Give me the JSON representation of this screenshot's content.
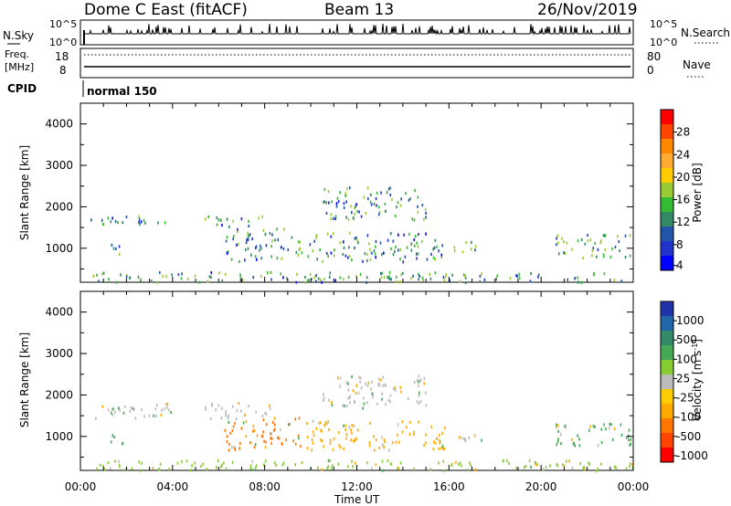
{
  "header": {
    "station": "Dome C East (fitACF)",
    "beam": "Beam 13",
    "date": "26/Nov/2019"
  },
  "colors": {
    "sky_line": "#000000",
    "search_dots": "#000000"
  },
  "chart_data": [
    {
      "type": "line",
      "name": "top-panel",
      "ylabel_left": "N.Sky",
      "ylabel_right": "N.Search",
      "left_ticks": [
        "10^5",
        "10^0"
      ],
      "right_ticks": [
        "10^5",
        "10^0"
      ]
    },
    {
      "type": "line",
      "name": "freq-nave-panel",
      "ylabel_left_lines": [
        "Freq.",
        "[MHz]"
      ],
      "ylabel_right": "Nave",
      "left_ticks": [
        "18",
        "8"
      ],
      "right_ticks": [
        "80",
        "0"
      ]
    },
    {
      "type": "table",
      "name": "cpid-panel",
      "label": "CPID",
      "mode": "normal 150"
    },
    {
      "type": "heatmap",
      "name": "power",
      "ylabel": "Slant Range [km]",
      "yticks": [
        "4000",
        "3000",
        "2000",
        "1000"
      ],
      "ylim": [
        180,
        4500
      ],
      "xlim": [
        0,
        24
      ],
      "xticks": [
        "00:00",
        "04:00",
        "08:00",
        "12:00",
        "16:00",
        "20:00",
        "00:00"
      ],
      "colorbar": {
        "label": "Power [dB]",
        "ticks": [
          "28",
          "24",
          "20",
          "16",
          "12",
          "8",
          "4"
        ],
        "colors": [
          "#ff0000",
          "#ff4400",
          "#ff8800",
          "#ffaa33",
          "#ffcc00",
          "#99cc33",
          "#33bb33",
          "#338866",
          "#2255aa",
          "#2233cc",
          "#0000ff"
        ]
      }
    },
    {
      "type": "heatmap",
      "name": "velocity",
      "ylabel": "Slant Range [km]",
      "yticks": [
        "4000",
        "3000",
        "2000",
        "1000"
      ],
      "ylim": [
        180,
        4500
      ],
      "xlim": [
        0,
        24
      ],
      "xticks": [
        "00:00",
        "04:00",
        "08:00",
        "12:00",
        "16:00",
        "20:00",
        "00:00"
      ],
      "xlabel": "Time UT",
      "colorbar": {
        "label": "Velocity [m s",
        "label_sup": "-1",
        "label_end": "]",
        "ticks": [
          "1000",
          "500",
          "100",
          "25",
          "-25",
          "-100",
          "-500",
          "-1000"
        ],
        "colors": [
          "#2233aa",
          "#2266aa",
          "#338866",
          "#44aa55",
          "#88cc33",
          "#bbbbbb",
          "#ffcc00",
          "#ffaa00",
          "#ff7700",
          "#ff4400",
          "#ff0000"
        ]
      },
      "bands": [
        {
          "t0": 0.1,
          "t1": 24,
          "r0": 200,
          "r1": 450,
          "color": "#88cc33"
        },
        {
          "t0": 0.4,
          "t1": 4.0,
          "r0": 1450,
          "r1": 1850,
          "color": "#bbbbbb"
        },
        {
          "t0": 5.3,
          "t1": 8.4,
          "r0": 1450,
          "r1": 1850,
          "color": "#bbbbbb"
        },
        {
          "t0": 1.3,
          "t1": 2.0,
          "r0": 850,
          "r1": 1150,
          "color": "#44aa55"
        },
        {
          "t0": 6.2,
          "t1": 9.6,
          "r0": 700,
          "r1": 1500,
          "color": "#ff7700"
        },
        {
          "t0": 9.8,
          "t1": 15.8,
          "r0": 700,
          "r1": 1400,
          "color": "#ffaa00"
        },
        {
          "t0": 10.5,
          "t1": 15.0,
          "r0": 1700,
          "r1": 2500,
          "color": "#bbbbbb"
        },
        {
          "t0": 16.2,
          "t1": 17.4,
          "r0": 900,
          "r1": 1200,
          "color": "#bbbbbb"
        },
        {
          "t0": 20.6,
          "t1": 24.0,
          "r0": 800,
          "r1": 1350,
          "color": "#44aa55"
        }
      ]
    }
  ]
}
